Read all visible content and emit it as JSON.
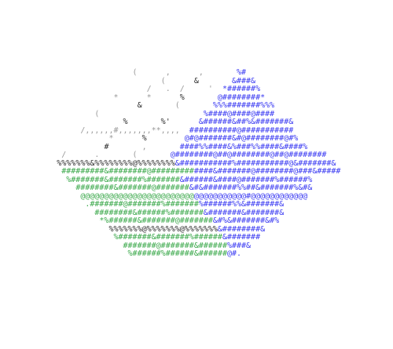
{
  "palette": {
    "ink": "#2b2b2b",
    "faint": "#9a9a9a",
    "blue": "#3a3af2",
    "green": "#3aa84a"
  },
  "art": {
    "name": "ascii-isometric-cube",
    "rows": [
      {
        "segments": [
          {
            "text": "(",
            "color": "faint",
            "col": 28
          },
          {
            "text": ",",
            "color": "faint",
            "col": 35
          },
          {
            "text": ",",
            "color": "faint",
            "col": 42
          },
          {
            "text": "%#",
            "color": "blue",
            "col": 50
          }
        ]
      },
      {
        "segments": [
          {
            "text": "(",
            "color": "faint",
            "col": 34
          },
          {
            "text": "&",
            "color": "ink",
            "col": 41
          },
          {
            "text": "&###&",
            "color": "blue",
            "col": 49
          }
        ]
      },
      {
        "segments": [
          {
            "text": "/",
            "color": "faint",
            "col": 31
          },
          {
            "text": ".",
            "color": "faint",
            "col": 35
          },
          {
            "text": "/",
            "color": "faint",
            "col": 38
          },
          {
            "text": "'",
            "color": "faint",
            "col": 44
          },
          {
            "text": "*######%",
            "color": "blue",
            "col": 47
          }
        ]
      },
      {
        "segments": [
          {
            "text": "*",
            "color": "faint",
            "col": 24
          },
          {
            "text": "*",
            "color": "faint",
            "col": 31
          },
          {
            "text": "%",
            "color": "ink",
            "col": 38
          },
          {
            "text": "@########*",
            "color": "blue",
            "col": 46
          }
        ]
      },
      {
        "segments": [
          {
            "text": "&",
            "color": "ink",
            "col": 29
          },
          {
            "text": "(",
            "color": "faint",
            "col": 37
          },
          {
            "text": "%%%#######%%%",
            "color": "blue",
            "col": 45
          }
        ]
      },
      {
        "segments": [
          {
            "text": "(",
            "color": "faint",
            "col": 20
          },
          {
            "text": "%####@####@####",
            "color": "blue",
            "col": 43
          }
        ]
      },
      {
        "segments": [
          {
            "text": "%",
            "color": "ink",
            "col": 26
          },
          {
            "text": "%'",
            "color": "ink",
            "col": 34
          },
          {
            "text": "&######&##%&#######&",
            "color": "blue",
            "col": 42
          }
        ]
      },
      {
        "segments": [
          {
            "text": "/,,,,,,#,,,,,,,**,,,,",
            "color": "faint",
            "col": 17
          },
          {
            "text": "##########@###########",
            "color": "blue",
            "col": 40
          }
        ]
      },
      {
        "segments": [
          {
            "text": "*",
            "color": "faint",
            "col": 23
          },
          {
            "text": "%",
            "color": "ink",
            "col": 30
          },
          {
            "text": "@#@#######&#@########@#%",
            "color": "blue",
            "col": 39
          }
        ]
      },
      {
        "segments": [
          {
            "text": "#",
            "color": "ink",
            "col": 22
          },
          {
            "text": ",",
            "color": "faint",
            "col": 30
          },
          {
            "text": "####%%####&%###%%####&####%",
            "color": "blue",
            "col": 38
          }
        ]
      },
      {
        "segments": [
          {
            "text": "/",
            "color": "faint",
            "col": 13
          },
          {
            "text": ".",
            "color": "faint",
            "col": 20
          },
          {
            "text": "(",
            "color": "faint",
            "col": 28
          },
          {
            "text": "@########@##@########@##@########",
            "color": "blue",
            "col": 36
          }
        ]
      },
      {
        "segments": [
          {
            "text": "%%%%%%%&%%%%%%%%@%%%%%%%%",
            "color": "ink",
            "col": 12
          },
          {
            "text": "&###########%###########@&#######&",
            "color": "blue",
            "col": 37
          }
        ]
      },
      {
        "segments": [
          {
            "text": "#########&########@#########",
            "color": "green",
            "col": 13
          },
          {
            "text": "####&#######@########@###&#####",
            "color": "blue",
            "col": 41
          }
        ]
      },
      {
        "segments": [
          {
            "text": "%#######&#######%#######",
            "color": "green",
            "col": 14
          },
          {
            "text": "&######&####@#######%######%",
            "color": "blue",
            "col": 38
          }
        ]
      },
      {
        "segments": [
          {
            "text": "########&#######@#######",
            "color": "green",
            "col": 16
          },
          {
            "text": "&#&#######%%##&#######%&#&",
            "color": "blue",
            "col": 40
          }
        ]
      },
      {
        "segments": [
          {
            "text": "@@@@@@@@@@@@@@@@@@@@@@@@",
            "color": "green",
            "col": 17
          },
          {
            "text": "@@@@@@@@@@@#@@@@@@@@@@@@",
            "color": "blue",
            "col": 41
          }
        ]
      },
      {
        "segments": [
          {
            "text": ".#######@#######%#######",
            "color": "green",
            "col": 18
          },
          {
            "text": "%######%%&#######&",
            "color": "blue",
            "col": 42
          }
        ]
      },
      {
        "segments": [
          {
            "text": "########&######%#######",
            "color": "green",
            "col": 20
          },
          {
            "text": "&#######&#######&",
            "color": "blue",
            "col": 43
          }
        ]
      },
      {
        "segments": [
          {
            "text": "*%######&#######@#######",
            "color": "green",
            "col": 21
          },
          {
            "text": "&#%&#######&#%",
            "color": "blue",
            "col": 45
          }
        ]
      },
      {
        "segments": [
          {
            "text": "%%%%%%%@%%%%%%%@%%%%%%%",
            "color": "ink",
            "col": 23
          },
          {
            "text": "&########&",
            "color": "blue",
            "col": 46
          }
        ]
      },
      {
        "segments": [
          {
            "text": "%#######&#######%######",
            "color": "green",
            "col": 24
          },
          {
            "text": "&#######",
            "color": "blue",
            "col": 47
          }
        ]
      },
      {
        "segments": [
          {
            "text": "#######@#######&######",
            "color": "green",
            "col": 26
          },
          {
            "text": "%###&",
            "color": "blue",
            "col": 48
          }
        ]
      },
      {
        "segments": [
          {
            "text": "%######%######&######",
            "color": "green",
            "col": 27
          },
          {
            "text": "@#.",
            "color": "blue",
            "col": 48
          }
        ]
      }
    ]
  }
}
